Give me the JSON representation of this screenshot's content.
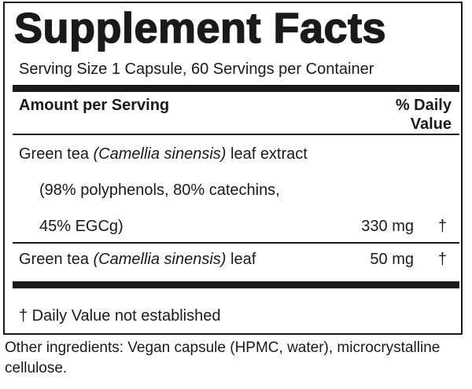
{
  "panel": {
    "title": "Supplement Facts",
    "serving": "Serving Size 1 Capsule, 60 Servings per Container",
    "header_left": "Amount per Serving",
    "header_right_line1": "% Daily",
    "header_right_line2": "Value",
    "ingredients": [
      {
        "prefix": "Green tea ",
        "latin": "(Camellia sinensis)",
        "suffix": " leaf extract",
        "detail_line1": "(98% polyphenols, 80% catechins,",
        "detail_line2": "45% EGCg)",
        "amount": "330 mg",
        "daily_value": "†"
      },
      {
        "prefix": "Green tea ",
        "latin": "(Camellia sinensis)",
        "suffix": " leaf",
        "amount": "50 mg",
        "daily_value": "†"
      }
    ],
    "footnote": "† Daily Value not established"
  },
  "other_ingredients": "Other ingredients: Vegan capsule (HPMC, water), microcrystalline cellulose."
}
